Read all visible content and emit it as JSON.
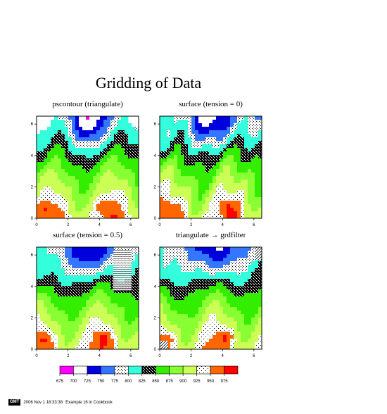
{
  "title": "Gridding of Data",
  "panels": [
    {
      "title": "pscontour (triangulate)"
    },
    {
      "title": "surface (tension = 0)"
    },
    {
      "title": "surface (tension = 0.5)"
    },
    {
      "title": "triangulate → grdfilter"
    }
  ],
  "colorbar": {
    "labels": [
      "675",
      "700",
      "725",
      "750",
      "775",
      "800",
      "825",
      "850",
      "875",
      "900",
      "925",
      "950",
      "975"
    ],
    "fills": [
      "#ff00ff",
      "#ffffff",
      "#0000dd",
      "#3377ff",
      "pattern-dots-small",
      "#33ffdd",
      "pattern-dots-dense",
      "#33ee00",
      "#88ff33",
      "#ccff55",
      "pattern-dots-sparse",
      "#ff6600",
      "#ff0000"
    ]
  },
  "stamp": {
    "badge": "GMT",
    "text": "2006 Nov 1 18:33:38",
    "caption": "Example 16 in Cookbook"
  },
  "chart_data": [
    {
      "type": "heatmap",
      "title": "pscontour (triangulate)",
      "xlim": [
        0,
        6.5
      ],
      "ylim": [
        0,
        6.5
      ],
      "xticks": [
        0,
        2,
        4,
        6
      ],
      "yticks": [
        0,
        2,
        4,
        6
      ],
      "contour_levels": [
        675,
        700,
        725,
        750,
        775,
        800,
        825,
        850,
        875,
        900,
        925,
        950,
        975
      ]
    },
    {
      "type": "heatmap",
      "title": "surface (tension = 0)",
      "xlim": [
        0,
        6.5
      ],
      "ylim": [
        0,
        6.5
      ],
      "xticks": [
        0,
        2,
        4,
        6
      ],
      "yticks": [
        0,
        2,
        4,
        6
      ],
      "contour_levels": [
        675,
        700,
        725,
        750,
        775,
        800,
        825,
        850,
        875,
        900,
        925,
        950,
        975
      ]
    },
    {
      "type": "heatmap",
      "title": "surface (tension = 0.5)",
      "xlim": [
        0,
        6.5
      ],
      "ylim": [
        0,
        6.5
      ],
      "xticks": [
        0,
        2,
        4,
        6
      ],
      "yticks": [
        0,
        2,
        4,
        6
      ],
      "contour_levels": [
        675,
        700,
        725,
        750,
        775,
        800,
        825,
        850,
        875,
        900,
        925,
        950,
        975
      ]
    },
    {
      "type": "heatmap",
      "title": "triangulate → grdfilter",
      "xlim": [
        0,
        6.5
      ],
      "ylim": [
        0,
        6.5
      ],
      "xticks": [
        0,
        2,
        4,
        6
      ],
      "yticks": [
        0,
        2,
        4,
        6
      ],
      "contour_levels": [
        675,
        700,
        725,
        750,
        775,
        800,
        825,
        850,
        875,
        900,
        925,
        950,
        975
      ]
    }
  ]
}
